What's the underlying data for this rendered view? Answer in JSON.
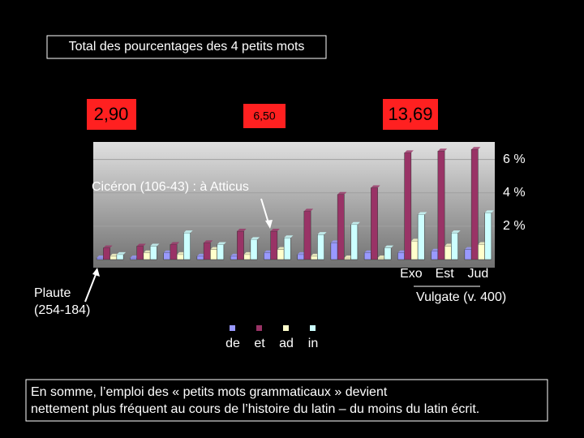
{
  "chart_data": {
    "type": "bar",
    "title": "Total des pourcentages des 4 petits mots",
    "totals": [
      "2,90",
      "6,50",
      "13,69"
    ],
    "annotations": {
      "ciceron": "Cicéron (106-43) : à Atticus",
      "plaute": [
        "Plaute",
        "(254-184)"
      ],
      "vulgate": "Vulgate (v. 400)"
    },
    "categories": [
      null,
      null,
      null,
      null,
      null,
      null,
      null,
      null,
      null,
      "Exo",
      "Est",
      "Jud"
    ],
    "series": [
      {
        "name": "de",
        "color": "#9999ff",
        "values": [
          0.1,
          0.1,
          0.4,
          0.2,
          0.2,
          0.4,
          0.3,
          1.0,
          0.4,
          0.4,
          0.5,
          0.6
        ]
      },
      {
        "name": "et",
        "color": "#993366",
        "values": [
          0.7,
          0.8,
          0.9,
          1.0,
          1.7,
          1.7,
          2.9,
          3.9,
          4.3,
          6.4,
          6.5,
          6.6
        ]
      },
      {
        "name": "ad",
        "color": "#ffffcc",
        "values": [
          0.2,
          0.4,
          0.3,
          0.6,
          0.3,
          0.6,
          0.2,
          0.1,
          0.1,
          1.1,
          0.8,
          0.9
        ]
      },
      {
        "name": "in",
        "color": "#ccffff",
        "values": [
          0.3,
          0.8,
          1.6,
          0.9,
          1.2,
          1.3,
          1.5,
          2.1,
          0.7,
          2.7,
          1.6,
          2.8
        ]
      }
    ],
    "ylim": [
      0,
      7
    ],
    "yticks": [
      {
        "value": 2,
        "label": "2 %"
      },
      {
        "value": 4,
        "label": "4 %"
      },
      {
        "value": 6,
        "label": "6 %"
      }
    ],
    "grid": true,
    "footer": [
      "En somme, l’emploi des « petits mots grammaticaux » devient",
      "nettement plus fréquent au cours de l’histoire du latin – du moins du latin écrit."
    ]
  }
}
